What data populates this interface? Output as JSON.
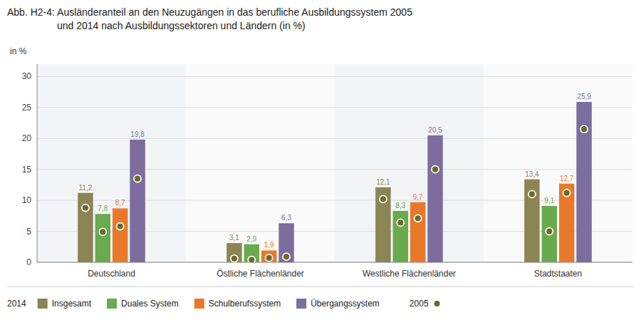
{
  "chart_data": {
    "type": "bar",
    "title": "Abb. H2-4:  Ausländeranteil an den Neuzugängen in das berufliche Ausbildungssystem 2005",
    "subtitle": "und 2014 nach Ausbildungssektoren und Ländern (in %)",
    "y_label": "in %",
    "categories": [
      "Deutschland",
      "Östliche Flächenländer",
      "Westliche Flächenländer",
      "Stadtstaaten"
    ],
    "series": [
      {
        "name": "Insgesamt",
        "type": "bar",
        "color": "#8b8455",
        "values": [
          11.2,
          3.1,
          12.1,
          13.4
        ],
        "value_labels": [
          "11,2",
          "3,1",
          "12,1",
          "13,4"
        ]
      },
      {
        "name": "Duales System",
        "type": "bar",
        "color": "#6aaa4e",
        "values": [
          7.8,
          2.9,
          8.3,
          9.1
        ],
        "value_labels": [
          "7,8",
          "2,9",
          "8,3",
          "9,1"
        ]
      },
      {
        "name": "Schulberufssystem",
        "type": "bar",
        "color": "#e8792a",
        "values": [
          8.7,
          1.9,
          9.7,
          12.7
        ],
        "value_labels": [
          "8,7",
          "1,9",
          "9,7",
          "12,7"
        ]
      },
      {
        "name": "Übergangssystem",
        "type": "bar",
        "color": "#7b6d9e",
        "values": [
          19.8,
          6.3,
          20.5,
          25.9
        ],
        "value_labels": [
          "19,8",
          "6,3",
          "20,5",
          "25,9"
        ]
      },
      {
        "name": "2005",
        "type": "scatter",
        "marker": "circle",
        "color": "#6b6b28",
        "values": [
          [
            8.8,
            4.9,
            5.8,
            13.5
          ],
          [
            0.6,
            0.4,
            0.7,
            0.9
          ],
          [
            10.2,
            6.4,
            7.1,
            15.0
          ],
          [
            11.0,
            5.0,
            11.2,
            21.5
          ]
        ]
      }
    ],
    "legend_title": "2014",
    "legend": "bottom",
    "data_labels": true,
    "grid": true,
    "ylim": [
      0,
      32
    ],
    "yticks": [
      0,
      5,
      10,
      15,
      20,
      25,
      30
    ]
  }
}
